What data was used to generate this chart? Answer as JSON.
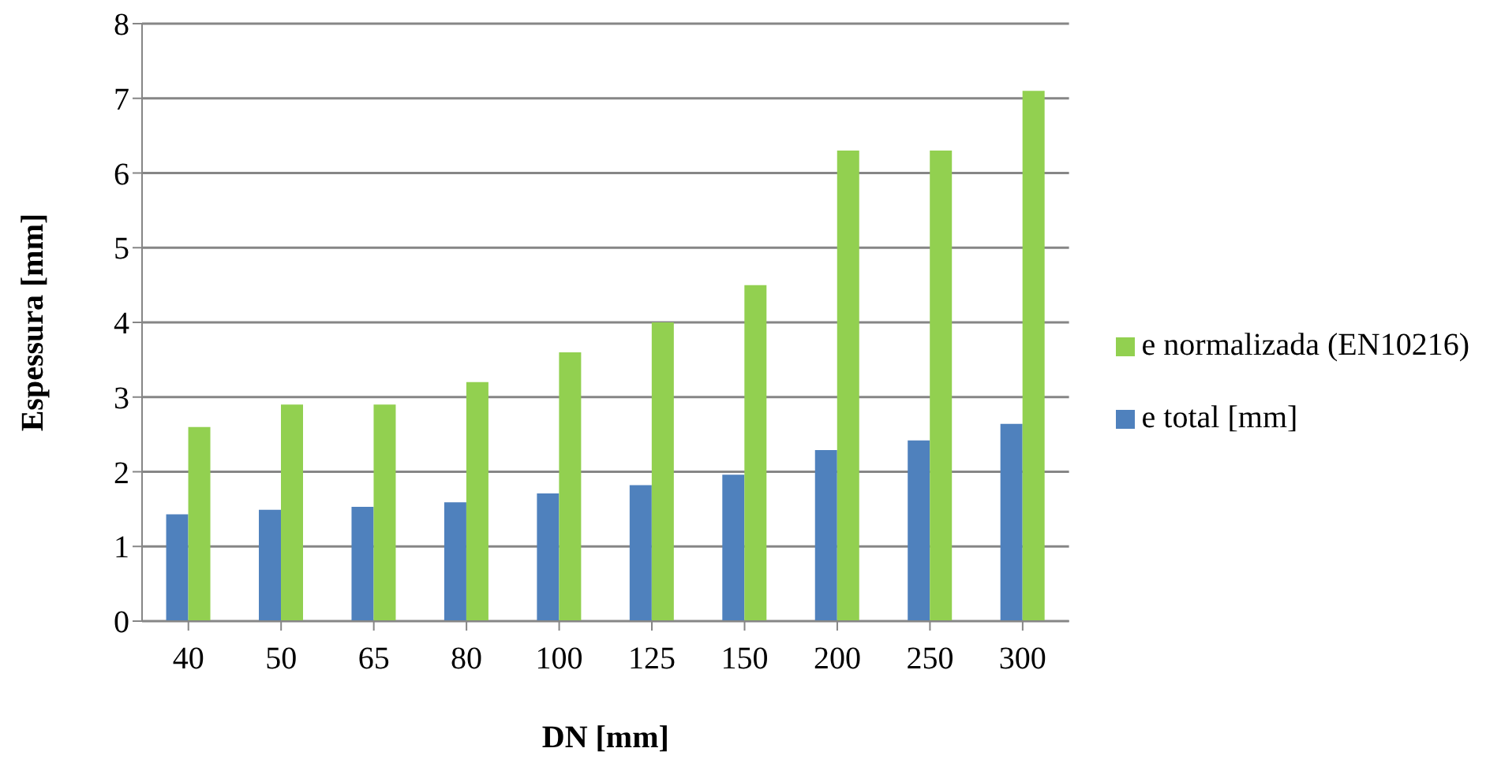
{
  "chart_data": {
    "type": "bar",
    "xlabel": "DN [mm]",
    "ylabel": "Espessura [mm]",
    "categories": [
      "40",
      "50",
      "65",
      "80",
      "100",
      "125",
      "150",
      "200",
      "250",
      "300"
    ],
    "series": [
      {
        "name": "e total [mm]",
        "color": "#4f81bd",
        "values": [
          1.43,
          1.49,
          1.53,
          1.59,
          1.71,
          1.82,
          1.96,
          2.29,
          2.42,
          2.64
        ]
      },
      {
        "name": "e normalizada (EN10216)",
        "color": "#92d050",
        "values": [
          2.6,
          2.9,
          2.9,
          3.2,
          3.6,
          4.0,
          4.5,
          6.3,
          6.3,
          7.1
        ]
      }
    ],
    "ylim": [
      0,
      8
    ],
    "yticks": [
      0,
      1,
      2,
      3,
      4,
      5,
      6,
      7,
      8
    ],
    "grid": "y",
    "legend": "right"
  }
}
